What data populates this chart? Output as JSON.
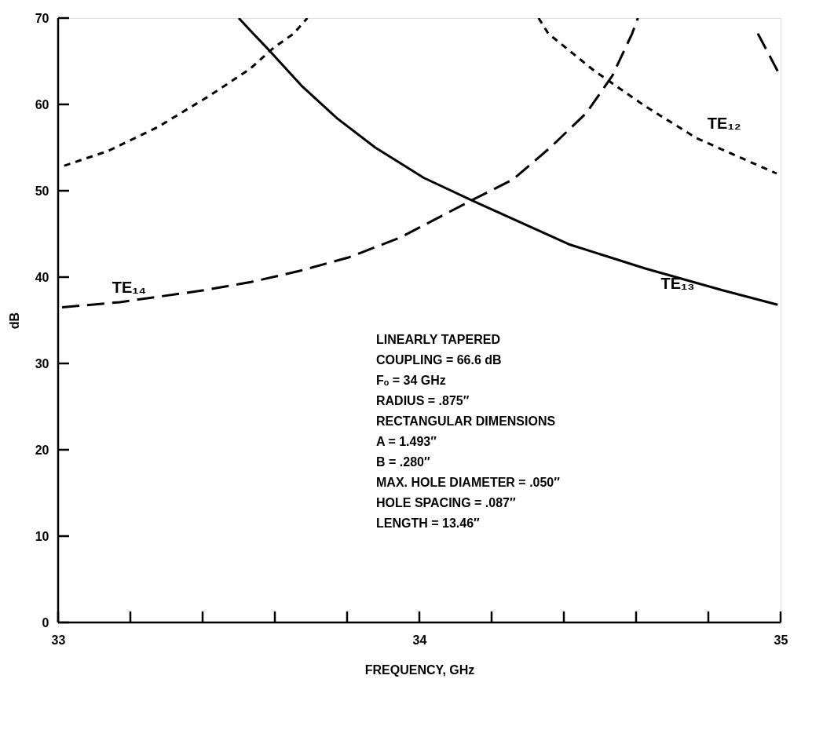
{
  "chart_data": {
    "type": "line",
    "xlabel": "FREQUENCY, GHz",
    "ylabel": "dB",
    "xlim": [
      33,
      35
    ],
    "ylim": [
      0,
      70
    ],
    "xticks": [
      33,
      {
        "value": 33.2,
        "label": null
      },
      {
        "value": 33.4,
        "label": null
      },
      {
        "value": 33.6,
        "label": null
      },
      {
        "value": 33.8,
        "label": null
      },
      34,
      {
        "value": 34.2,
        "label": null
      },
      {
        "value": 34.4,
        "label": null
      },
      {
        "value": 34.6,
        "label": null
      },
      {
        "value": 34.8,
        "label": null
      },
      35
    ],
    "yticks": [
      0,
      10,
      20,
      30,
      40,
      50,
      60,
      70
    ],
    "grid": false,
    "series": [
      {
        "name": "TE₁₂",
        "color": "#000000",
        "line_style": "dotted",
        "x": [
          33.017,
          33.138,
          33.277,
          33.419,
          33.531,
          33.595,
          33.652,
          33.69,
          null,
          34.33,
          34.357,
          34.484,
          34.625,
          34.767,
          34.907,
          34.989
        ],
        "values": [
          52.9,
          54.6,
          57.4,
          61.0,
          64.1,
          66.5,
          68.2,
          70,
          null,
          70,
          68.2,
          63.9,
          59.8,
          56.1,
          53.5,
          52.0
        ]
      },
      {
        "name": "TE₁₃",
        "color": "#000000",
        "line_style": "solid",
        "x": [
          33.5,
          33.54,
          33.588,
          33.673,
          33.772,
          33.878,
          34.012,
          34.16,
          34.414,
          34.625,
          34.837,
          34.992
        ],
        "values": [
          70,
          68.2,
          66.1,
          62.2,
          58.4,
          55.0,
          51.5,
          48.6,
          43.8,
          41.0,
          38.5,
          36.8
        ]
      },
      {
        "name": "TE₁₄",
        "color": "#000000",
        "line_style": "dashed",
        "x": [
          33.011,
          33.171,
          33.392,
          33.531,
          33.667,
          33.806,
          33.948,
          34.145,
          34.259,
          34.365,
          34.462,
          34.534,
          34.589,
          34.605
        ],
        "values": [
          36.5,
          37.1,
          38.4,
          39.4,
          40.7,
          42.3,
          44.6,
          48.9,
          51.3,
          55.1,
          59.0,
          63.3,
          68.2,
          70
        ]
      },
      {
        "color": "#000000",
        "line_style": "dashed",
        "x": [
          34.937,
          34.97,
          35.0
        ],
        "values": [
          68.2,
          65.6,
          63.2
        ]
      }
    ],
    "annotations": [
      "LINEARLY TAPERED",
      "COUPLING = 66.6 dB",
      "Fₒ =  34 GHz",
      "RADIUS = .875″",
      "RECTANGULAR DIMENSIONS",
      "A = 1.493″",
      "B = .280″",
      "MAX. HOLE DIAMETER = .050″",
      "HOLE SPACING = .087″",
      "LENGTH = 13.46″"
    ]
  }
}
